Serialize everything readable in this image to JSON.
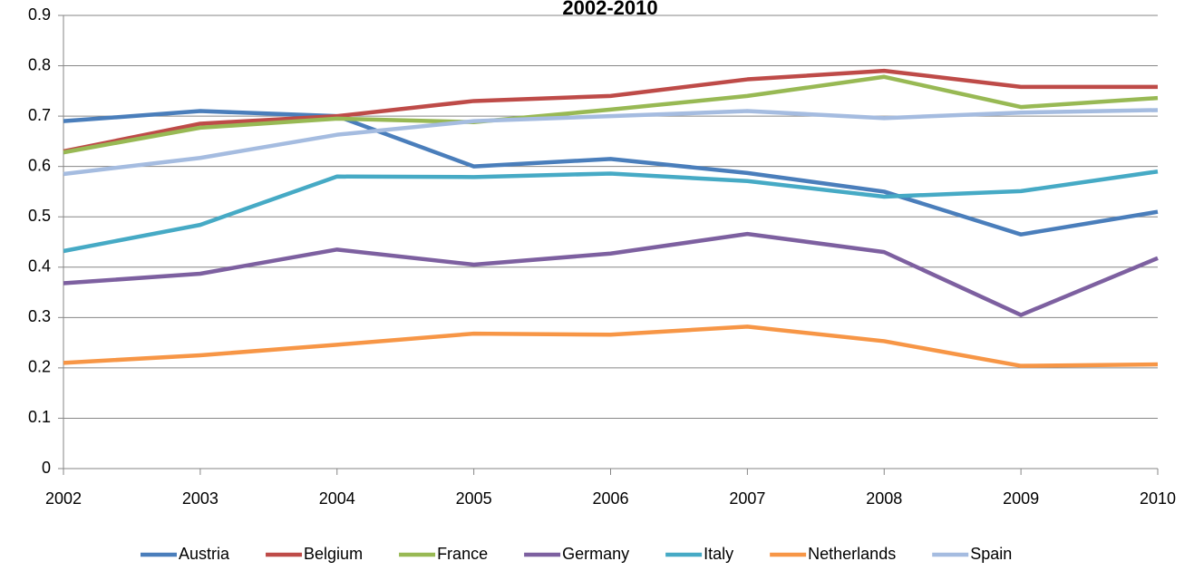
{
  "chart_data": {
    "type": "line",
    "title": "2002-2010",
    "x": [
      2002,
      2003,
      2004,
      2005,
      2006,
      2007,
      2008,
      2009,
      2010
    ],
    "xlim": [
      2002,
      2010
    ],
    "xticks": [
      2002,
      2003,
      2004,
      2005,
      2006,
      2007,
      2008,
      2009,
      2010
    ],
    "ylim": [
      0,
      0.9
    ],
    "yticks": [
      0,
      0.1,
      0.2,
      0.3,
      0.4,
      0.5,
      0.6,
      0.7,
      0.8,
      0.9
    ],
    "grid": true,
    "legend": "bottom",
    "series": [
      {
        "name": "Austria",
        "color": "#4a7ebb",
        "values": [
          0.69,
          0.71,
          0.7,
          0.6,
          0.615,
          0.587,
          0.55,
          0.465,
          0.51
        ]
      },
      {
        "name": "Belgium",
        "color": "#be4b48",
        "values": [
          0.63,
          0.685,
          0.7,
          0.73,
          0.74,
          0.773,
          0.79,
          0.758,
          0.758
        ]
      },
      {
        "name": "France",
        "color": "#98b954",
        "values": [
          0.628,
          0.677,
          0.695,
          0.688,
          0.713,
          0.74,
          0.778,
          0.718,
          0.736
        ]
      },
      {
        "name": "Germany",
        "color": "#7d60a0",
        "values": [
          0.368,
          0.387,
          0.435,
          0.405,
          0.427,
          0.466,
          0.43,
          0.305,
          0.418
        ]
      },
      {
        "name": "Italy",
        "color": "#46aac5",
        "values": [
          0.432,
          0.484,
          0.58,
          0.579,
          0.586,
          0.571,
          0.54,
          0.551,
          0.59
        ]
      },
      {
        "name": "Netherlands",
        "color": "#f79646",
        "values": [
          0.21,
          0.225,
          0.246,
          0.268,
          0.266,
          0.282,
          0.253,
          0.204,
          0.207
        ]
      },
      {
        "name": "Spain",
        "color": "#a5bce0",
        "values": [
          0.585,
          0.617,
          0.663,
          0.69,
          0.7,
          0.71,
          0.696,
          0.707,
          0.712
        ]
      }
    ]
  }
}
